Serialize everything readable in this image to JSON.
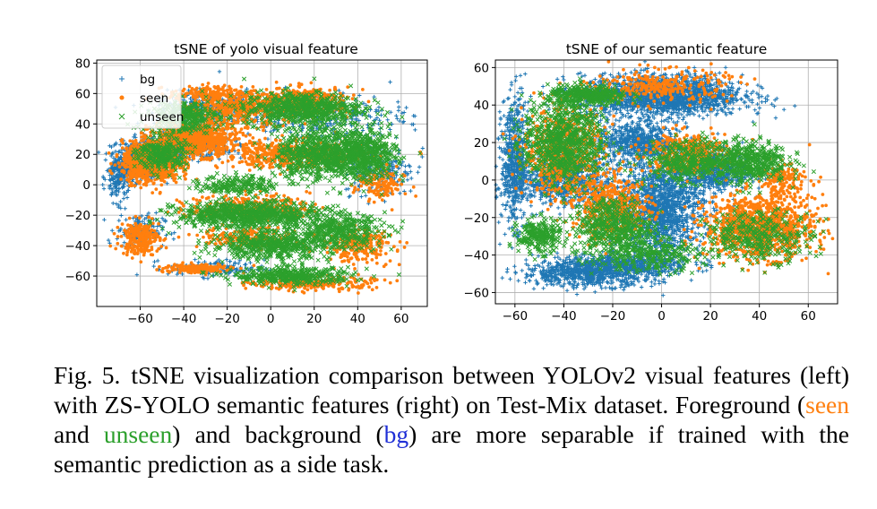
{
  "figure": {
    "colors": {
      "bg": "#1f77b4",
      "seen": "#ff7f0e",
      "unseen": "#2ca02c"
    },
    "chart_data": [
      {
        "type": "scatter",
        "title": "tSNE of yolo visual feature",
        "xlabel": "",
        "ylabel": "",
        "xlim": [
          -80,
          72
        ],
        "ylim": [
          -80,
          82
        ],
        "xticks": [
          -60,
          -40,
          -20,
          0,
          20,
          40,
          60
        ],
        "xtick_labels": [
          "−60",
          "−40",
          "−20",
          "0",
          "20",
          "40",
          "60"
        ],
        "yticks": [
          -60,
          -40,
          -20,
          0,
          20,
          40,
          60,
          80
        ],
        "ytick_labels": [
          "−60",
          "−40",
          "−20",
          "0",
          "20",
          "40",
          "60",
          "80"
        ],
        "grid": true,
        "legend": {
          "placement": "top-left",
          "entries": [
            "bg",
            "seen",
            "unseen"
          ]
        },
        "series": [
          {
            "name": "bg",
            "marker": "plus",
            "color": "#1f77b4",
            "regions": [
              [
                -60,
                15,
                10,
                10,
                500
              ],
              [
                -40,
                25,
                20,
                8,
                400
              ],
              [
                -30,
                50,
                20,
                10,
                300
              ],
              [
                -70,
                5,
                5,
                15,
                200
              ],
              [
                -60,
                -30,
                10,
                10,
                150
              ],
              [
                -25,
                -55,
                20,
                5,
                150
              ],
              [
                50,
                10,
                15,
                15,
                200
              ],
              [
                20,
                45,
                40,
                15,
                300
              ]
            ]
          },
          {
            "name": "seen",
            "marker": "star",
            "color": "#ff7f0e",
            "regions": [
              [
                -55,
                15,
                12,
                12,
                900
              ],
              [
                -35,
                30,
                18,
                10,
                700
              ],
              [
                -15,
                50,
                20,
                10,
                500
              ],
              [
                15,
                55,
                20,
                8,
                400
              ],
              [
                10,
                20,
                30,
                8,
                500
              ],
              [
                -60,
                -35,
                8,
                10,
                250
              ],
              [
                -35,
                -55,
                15,
                3,
                150
              ],
              [
                20,
                -65,
                25,
                4,
                250
              ],
              [
                40,
                -40,
                15,
                10,
                250
              ],
              [
                -10,
                -15,
                25,
                8,
                300
              ],
              [
                -10,
                -35,
                20,
                6,
                200
              ],
              [
                50,
                0,
                10,
                10,
                150
              ],
              [
                -30,
                60,
                15,
                4,
                150
              ]
            ]
          },
          {
            "name": "unseen",
            "marker": "x",
            "color": "#2ca02c",
            "regions": [
              [
                15,
                50,
                25,
                10,
                650
              ],
              [
                25,
                20,
                20,
                15,
                800
              ],
              [
                -10,
                -20,
                30,
                8,
                800
              ],
              [
                0,
                -40,
                25,
                8,
                500
              ],
              [
                10,
                -60,
                25,
                5,
                400
              ],
              [
                45,
                20,
                12,
                15,
                400
              ],
              [
                -40,
                45,
                15,
                10,
                300
              ],
              [
                -50,
                20,
                10,
                10,
                300
              ],
              [
                30,
                -30,
                20,
                10,
                400
              ],
              [
                -15,
                0,
                15,
                6,
                200
              ]
            ]
          }
        ]
      },
      {
        "type": "scatter",
        "title": "tSNE of our semantic feature",
        "xlabel": "",
        "ylabel": "",
        "xlim": [
          -68,
          72
        ],
        "ylim": [
          -66,
          64
        ],
        "xticks": [
          -60,
          -40,
          -20,
          0,
          20,
          40,
          60
        ],
        "xtick_labels": [
          "−60",
          "−40",
          "−20",
          "0",
          "20",
          "40",
          "60"
        ],
        "yticks": [
          -60,
          -40,
          -20,
          0,
          20,
          40,
          60
        ],
        "ytick_labels": [
          "−60",
          "−40",
          "−20",
          "0",
          "20",
          "40",
          "60"
        ],
        "grid": true,
        "legend": null,
        "series": [
          {
            "name": "bg",
            "marker": "plus",
            "color": "#1f77b4",
            "regions": [
              [
                0,
                45,
                30,
                10,
                1800
              ],
              [
                -60,
                10,
                5,
                30,
                600
              ],
              [
                -30,
                -50,
                25,
                6,
                700
              ],
              [
                0,
                -15,
                15,
                25,
                1500
              ],
              [
                -40,
                0,
                18,
                12,
                700
              ],
              [
                -10,
                20,
                15,
                10,
                600
              ],
              [
                20,
                5,
                15,
                10,
                600
              ],
              [
                -15,
                -45,
                25,
                5,
                500
              ]
            ]
          },
          {
            "name": "seen",
            "marker": "star",
            "color": "#ff7f0e",
            "regions": [
              [
                40,
                -25,
                20,
                15,
                1100
              ],
              [
                -40,
                15,
                15,
                20,
                700
              ],
              [
                -20,
                -15,
                15,
                15,
                500
              ],
              [
                10,
                15,
                15,
                10,
                350
              ],
              [
                0,
                50,
                25,
                8,
                300
              ],
              [
                50,
                0,
                10,
                8,
                150
              ]
            ]
          },
          {
            "name": "unseen",
            "marker": "x",
            "color": "#2ca02c",
            "regions": [
              [
                -40,
                20,
                15,
                20,
                800
              ],
              [
                -20,
                -25,
                15,
                15,
                500
              ],
              [
                35,
                10,
                15,
                10,
                500
              ],
              [
                -30,
                45,
                15,
                5,
                350
              ],
              [
                10,
                10,
                15,
                10,
                350
              ],
              [
                -50,
                -30,
                8,
                8,
                250
              ],
              [
                40,
                -30,
                20,
                12,
                350
              ],
              [
                -5,
                -40,
                20,
                8,
                250
              ]
            ]
          }
        ]
      }
    ]
  },
  "caption": {
    "label": "Fig. 5.",
    "part1": "tSNE visualization comparison between YOLOv2 visual features (left) with ZS-YOLO semantic features (right) on Test-Mix dataset. Foreground (",
    "seen": "seen",
    "and": " and ",
    "unseen": "unseen",
    "part2": ") and background (",
    "bg": "bg",
    "part3": ") are more separable if trained with the semantic prediction as a side task."
  }
}
